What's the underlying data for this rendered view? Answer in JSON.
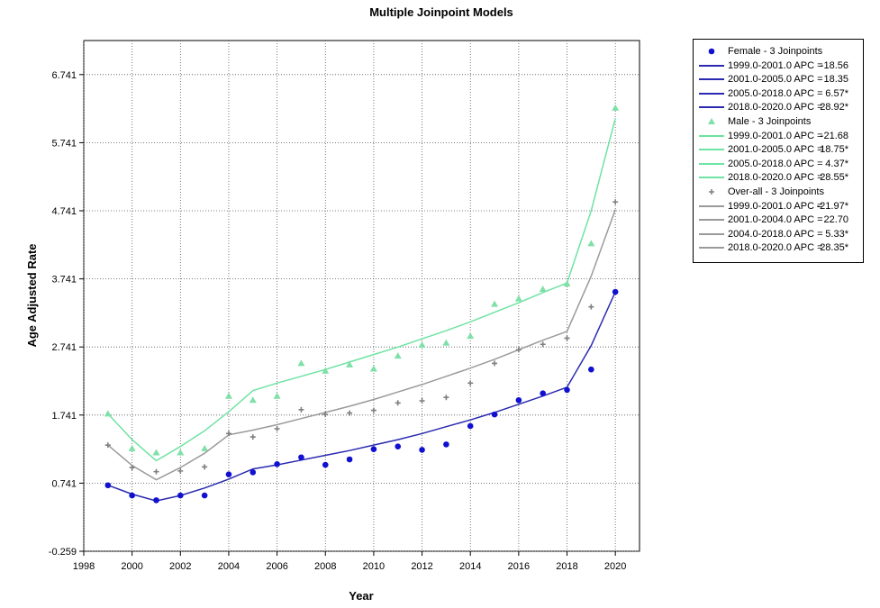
{
  "chart_data": {
    "type": "line",
    "title": "Multiple Joinpoint Models",
    "xlabel": "Year",
    "ylabel": "Age Adjusted Rate",
    "xlim": [
      1998,
      2021
    ],
    "ylim": [
      -0.259,
      7.241
    ],
    "xticks": [
      "1998",
      "2000",
      "2002",
      "2004",
      "2006",
      "2008",
      "2010",
      "2012",
      "2014",
      "2016",
      "2018",
      "2020"
    ],
    "yticks": [
      "-0.259",
      "0.741",
      "1.741",
      "2.741",
      "3.741",
      "4.741",
      "5.741",
      "6.741"
    ],
    "grid": true,
    "legend_position": "right, outside plot",
    "x": [
      1999,
      2000,
      2001,
      2002,
      2003,
      2004,
      2005,
      2006,
      2007,
      2008,
      2009,
      2010,
      2011,
      2012,
      2013,
      2014,
      2015,
      2016,
      2017,
      2018,
      2019,
      2020
    ],
    "series": [
      {
        "name": "Female - 3 Joinpoints",
        "marker": "circle",
        "color": "#1010d0",
        "line_color": "#2a2ab0",
        "observed": [
          0.71,
          0.56,
          0.49,
          0.56,
          0.56,
          0.87,
          0.9,
          1.02,
          1.12,
          1.01,
          1.09,
          1.24,
          1.28,
          1.23,
          1.31,
          1.58,
          1.75,
          1.96,
          2.06,
          2.11,
          2.41,
          3.55
        ],
        "fitted": [
          0.71,
          0.58,
          0.48,
          0.56,
          0.67,
          0.8,
          0.95,
          1.01,
          1.08,
          1.15,
          1.22,
          1.3,
          1.38,
          1.47,
          1.57,
          1.67,
          1.78,
          1.9,
          2.02,
          2.15,
          2.76,
          3.55
        ],
        "segments": [
          {
            "label": "1999.0-2001.0 APC  =",
            "value": "-18.56"
          },
          {
            "label": "2001.0-2005.0 APC  =",
            "value": "18.35"
          },
          {
            "label": "2005.0-2018.0 APC  =",
            "value": "6.57*"
          },
          {
            "label": "2018.0-2020.0 APC  =",
            "value": "28.92*"
          }
        ]
      },
      {
        "name": "Male - 3 Joinpoints",
        "marker": "triangle",
        "color": "#7fe0a8",
        "line_color": "#6ee3a2",
        "observed": [
          1.76,
          1.25,
          1.19,
          1.19,
          1.25,
          2.02,
          1.96,
          2.02,
          2.5,
          2.39,
          2.48,
          2.42,
          2.61,
          2.77,
          2.8,
          2.9,
          3.37,
          3.45,
          3.59,
          3.67,
          4.26,
          6.25
        ],
        "fitted": [
          1.76,
          1.38,
          1.07,
          1.28,
          1.51,
          1.79,
          2.1,
          2.21,
          2.31,
          2.41,
          2.52,
          2.63,
          2.74,
          2.86,
          2.98,
          3.11,
          3.25,
          3.39,
          3.54,
          3.68,
          4.74,
          6.1
        ],
        "segments": [
          {
            "label": "1999.0-2001.0 APC  =",
            "value": "-21.68"
          },
          {
            "label": "2001.0-2005.0 APC  =",
            "value": "18.75*"
          },
          {
            "label": "2005.0-2018.0 APC  =",
            "value": "4.37*"
          },
          {
            "label": "2018.0-2020.0 APC  =",
            "value": "28.55*"
          }
        ]
      },
      {
        "name": "Over-all - 3 Joinpoints",
        "marker": "plus",
        "color": "#7f7f7f",
        "line_color": "#9a9a9a",
        "observed": [
          1.3,
          0.97,
          0.91,
          0.92,
          0.98,
          1.47,
          1.42,
          1.54,
          1.82,
          1.75,
          1.77,
          1.81,
          1.92,
          1.95,
          2.0,
          2.21,
          2.5,
          2.7,
          2.78,
          2.87,
          3.33,
          4.87
        ],
        "fitted": [
          1.3,
          1.0,
          0.79,
          0.97,
          1.18,
          1.45,
          1.52,
          1.6,
          1.69,
          1.78,
          1.87,
          1.97,
          2.08,
          2.19,
          2.31,
          2.43,
          2.56,
          2.7,
          2.84,
          2.97,
          3.78,
          4.76
        ],
        "segments": [
          {
            "label": "1999.0-2001.0 APC  =",
            "value": "-21.97*"
          },
          {
            "label": "2001.0-2004.0 APC  =",
            "value": "22.70"
          },
          {
            "label": "2004.0-2018.0 APC  =",
            "value": "5.33*"
          },
          {
            "label": "2018.0-2020.0 APC  =",
            "value": "28.35*"
          }
        ]
      }
    ]
  }
}
